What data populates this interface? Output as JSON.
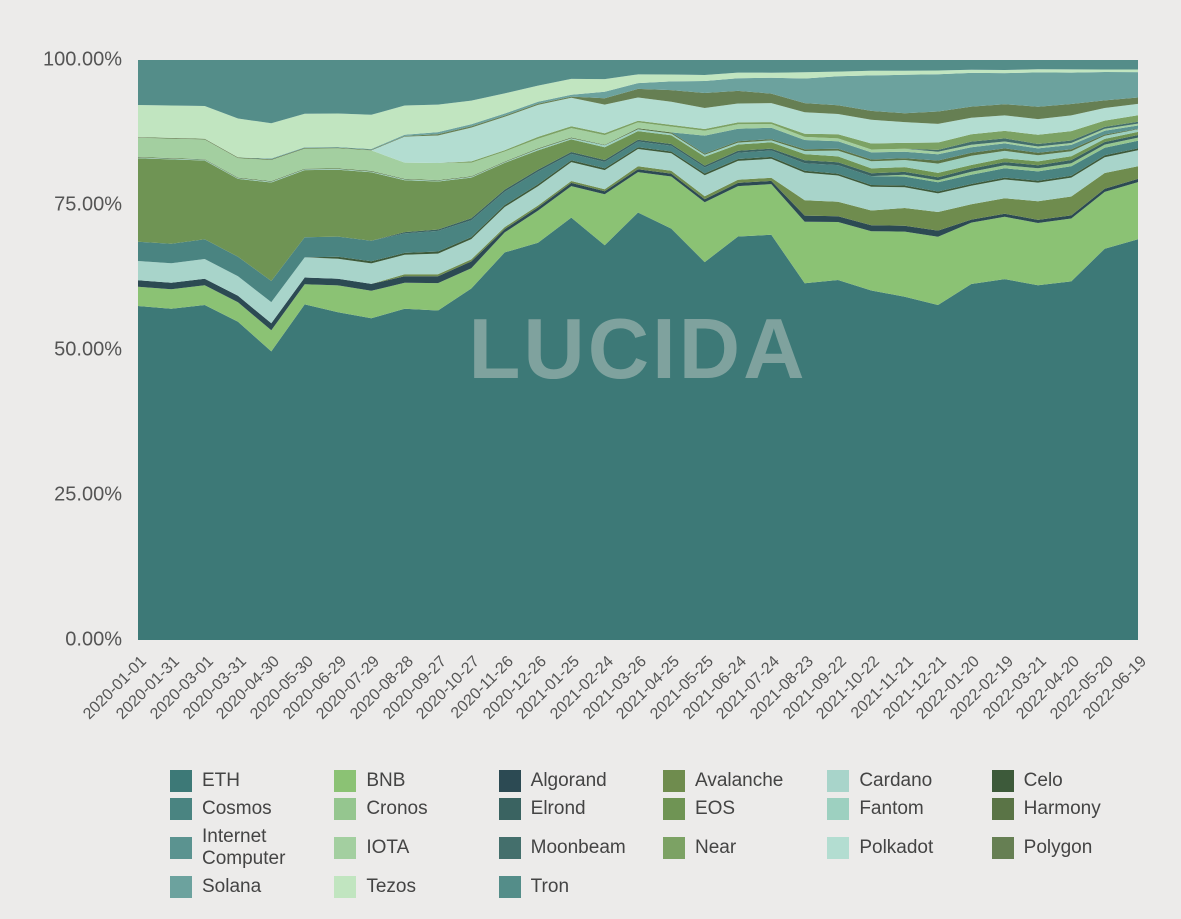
{
  "chart": {
    "type": "stacked-area-100",
    "watermark": "LUCIDA",
    "background_color": "#ecebea",
    "plot_background": "#fcfcfc",
    "text_color": "#555555",
    "y_axis": {
      "min": 0,
      "max": 100,
      "tick_step": 25,
      "format": "percent-2dp",
      "ticks": [
        "0.00%",
        "25.00%",
        "50.00%",
        "75.00%",
        "100.00%"
      ],
      "label_fontsize": 20
    },
    "x_axis": {
      "labels": [
        "2020-01-01",
        "2020-01-31",
        "2020-03-01",
        "2020-03-31",
        "2020-04-30",
        "2020-05-30",
        "2020-06-29",
        "2020-07-29",
        "2020-08-28",
        "2020-09-27",
        "2020-10-27",
        "2020-11-26",
        "2020-12-26",
        "2021-01-25",
        "2021-02-24",
        "2021-03-26",
        "2021-04-25",
        "2021-05-25",
        "2021-06-24",
        "2021-07-24",
        "2021-08-23",
        "2021-09-22",
        "2021-10-22",
        "2021-11-21",
        "2021-12-21",
        "2022-01-20",
        "2022-02-19",
        "2022-03-21",
        "2022-04-20",
        "2022-05-20",
        "2022-06-19"
      ],
      "rotation_deg": -45,
      "label_fontsize": 16
    },
    "series_order": [
      "ETH",
      "BNB",
      "Algorand",
      "Avalanche",
      "Cardano",
      "Celo",
      "Cosmos",
      "Cronos",
      "Elrond",
      "EOS",
      "Fantom",
      "Harmony",
      "Internet Computer",
      "IOTA",
      "Moonbeam",
      "Near",
      "Polkadot",
      "Polygon",
      "Solana",
      "Tezos",
      "Tron"
    ],
    "series_colors": {
      "ETH": "#3d7977",
      "BNB": "#8bc274",
      "Algorand": "#2c4a53",
      "Avalanche": "#6f8c4e",
      "Cardano": "#a8d4ca",
      "Celo": "#3d5a3a",
      "Cosmos": "#4a8481",
      "Cronos": "#95c68f",
      "Elrond": "#3a6361",
      "EOS": "#6f9454",
      "Fantom": "#9dd0c0",
      "Harmony": "#5a7446",
      "Internet Computer": "#5b9390",
      "IOTA": "#a3cfa0",
      "Moonbeam": "#446f6c",
      "Near": "#7ca264",
      "Polkadot": "#b3ddd1",
      "Polygon": "#667f53",
      "Solana": "#6ca29e",
      "Tezos": "#c1e5c0",
      "Tron": "#548d89"
    },
    "legend": {
      "columns": 6,
      "fontsize": 19,
      "swatch_size": 22
    },
    "data": {
      "x_count": 31,
      "series": {
        "ETH": [
          52,
          51,
          51,
          49,
          41,
          50,
          49,
          47,
          51,
          48,
          52,
          58,
          62,
          67,
          62,
          74,
          71,
          63,
          64,
          64,
          58,
          62,
          59,
          58,
          54,
          58,
          58,
          57,
          57,
          62,
          63
        ],
        "BNB": [
          3,
          3,
          3,
          3,
          3,
          3,
          4,
          4,
          4,
          4,
          3,
          3,
          5,
          5,
          8,
          7,
          9,
          10,
          8,
          8,
          10,
          10,
          10,
          11,
          11,
          10,
          10,
          10,
          10,
          9,
          9
        ],
        "Algorand": [
          1,
          1,
          1,
          1,
          1,
          1,
          1,
          1,
          1,
          1,
          1,
          0.5,
          0.5,
          0.5,
          0.5,
          0.5,
          0.5,
          0.5,
          0.5,
          0.5,
          1,
          1,
          1,
          1,
          1,
          0.5,
          0.5,
          0.5,
          0.5,
          0.5,
          0.5
        ],
        "Avalanche": [
          0,
          0,
          0,
          0,
          0,
          0,
          0,
          0,
          0.3,
          0.3,
          0.3,
          0.3,
          0.3,
          0.3,
          0.3,
          0.5,
          0.5,
          0.5,
          0.5,
          0.5,
          2.5,
          2.5,
          2.5,
          3,
          3,
          2.5,
          2.5,
          3,
          3,
          2.5,
          2
        ],
        "Cardano": [
          3,
          3,
          3,
          3,
          3,
          3,
          3,
          3,
          3,
          3,
          3,
          3,
          3,
          3,
          3,
          3,
          3,
          3.5,
          3,
          3,
          4.5,
          4.5,
          4,
          3.5,
          3,
          3,
          3,
          3,
          3,
          2.5,
          2.5
        ],
        "Celo": [
          0,
          0,
          0,
          0,
          0,
          0,
          0.3,
          0.3,
          0.3,
          0.3,
          0.3,
          0.3,
          0.3,
          0.3,
          0.3,
          0.3,
          0.3,
          0.3,
          0.3,
          0.3,
          0.3,
          0.3,
          0.3,
          0.3,
          0.3,
          0.3,
          0.3,
          0.3,
          0.3,
          0.3,
          0.3
        ],
        "Cosmos": [
          3,
          3,
          3,
          3,
          3,
          3,
          3,
          3,
          3,
          3,
          2.5,
          2,
          2,
          1,
          1,
          1,
          1,
          1,
          1,
          1,
          1.2,
          1.5,
          1.5,
          1.5,
          1.5,
          1.5,
          1.5,
          1.5,
          1.5,
          1.2,
          1.2
        ],
        "Cronos": [
          0,
          0,
          0,
          0,
          0,
          0,
          0,
          0,
          0,
          0,
          0,
          0,
          0,
          0,
          0,
          0,
          0,
          0,
          0,
          0,
          0,
          0,
          0,
          0.3,
          0.3,
          0.5,
          0.5,
          0.5,
          0.5,
          0.5,
          0.5
        ],
        "Elrond": [
          0,
          0,
          0,
          0,
          0,
          0,
          0,
          0,
          0.2,
          0.2,
          0.3,
          0.3,
          0.3,
          0.3,
          0.3,
          0.3,
          0.3,
          0.3,
          0.3,
          0.3,
          0.5,
          0.5,
          0.5,
          0.5,
          0.5,
          0.5,
          0.5,
          0.5,
          0.5,
          0.4,
          0.4
        ],
        "EOS": [
          13,
          13,
          12,
          12,
          14,
          10,
          10,
          10,
          8,
          7,
          6,
          4,
          3,
          2,
          2,
          1.5,
          1.5,
          1.5,
          1,
          1,
          1,
          1,
          0.8,
          0.8,
          0.7,
          0.6,
          0.6,
          0.6,
          0.6,
          0.5,
          0.5
        ],
        "Fantom": [
          0.1,
          0.1,
          0.1,
          0.1,
          0.1,
          0.1,
          0.1,
          0.1,
          0.1,
          0.1,
          0.1,
          0.1,
          0.2,
          0.2,
          0.3,
          0.3,
          0.3,
          0.3,
          0.3,
          0.3,
          0.5,
          1,
          1.2,
          1.2,
          1.5,
          1.5,
          1.2,
          1,
          0.8,
          0.5,
          0.4
        ],
        "Harmony": [
          0.1,
          0.1,
          0.1,
          0.1,
          0.1,
          0.1,
          0.1,
          0.1,
          0.1,
          0.1,
          0.1,
          0.1,
          0.1,
          0.1,
          0.1,
          0.2,
          0.2,
          0.2,
          0.2,
          0.2,
          0.3,
          0.3,
          0.3,
          0.3,
          0.5,
          0.5,
          0.4,
          0.4,
          0.3,
          0.2,
          0.1
        ],
        "Internet Computer": [
          0,
          0,
          0,
          0,
          0,
          0,
          0,
          0,
          0,
          0,
          0,
          0,
          0,
          0,
          0,
          0,
          0,
          3,
          2,
          1.8,
          1.5,
          1.3,
          1.2,
          1.1,
          1,
          0.9,
          0.8,
          0.7,
          0.7,
          0.6,
          0.5
        ],
        "IOTA": [
          3,
          3,
          3,
          3,
          3,
          3,
          3,
          3,
          2.5,
          2.5,
          2,
          1.5,
          1.5,
          1.5,
          1.5,
          1,
          1,
          0.8,
          0.7,
          0.6,
          0.5,
          0.5,
          0.5,
          0.5,
          0.4,
          0.4,
          0.3,
          0.3,
          0.3,
          0.3,
          0.3
        ],
        "Moonbeam": [
          0,
          0,
          0,
          0,
          0,
          0,
          0,
          0,
          0,
          0,
          0,
          0,
          0,
          0,
          0,
          0,
          0,
          0,
          0,
          0,
          0,
          0,
          0,
          0,
          0.3,
          0.5,
          0.5,
          0.4,
          0.4,
          0.3,
          0.3
        ],
        "Near": [
          0,
          0,
          0,
          0,
          0,
          0,
          0,
          0,
          0,
          0,
          0.2,
          0.2,
          0.3,
          0.3,
          0.3,
          0.3,
          0.3,
          0.3,
          0.3,
          0.3,
          0.5,
          0.7,
          1,
          1,
          1.2,
          1.2,
          1.2,
          1.5,
          1.5,
          1,
          1
        ],
        "Polkadot": [
          0,
          0,
          0,
          0,
          0,
          0,
          0,
          0,
          4,
          4,
          5,
          5,
          5,
          4.5,
          4.5,
          4,
          4,
          3.5,
          3,
          3,
          3.5,
          3.5,
          4,
          3.5,
          3,
          2.7,
          2.5,
          2.5,
          2.5,
          2,
          1.8
        ],
        "Polygon": [
          0.1,
          0.1,
          0.1,
          0.1,
          0.1,
          0.1,
          0.1,
          0.1,
          0.1,
          0.2,
          0.2,
          0.2,
          0.2,
          0.2,
          1,
          1.5,
          2,
          2.5,
          2,
          1.5,
          1.5,
          1.5,
          1.5,
          1.5,
          2,
          1.8,
          1.8,
          2,
          1.8,
          1.2,
          1
        ],
        "Solana": [
          0,
          0,
          0,
          0,
          0.1,
          0.1,
          0.1,
          0.1,
          0.2,
          0.3,
          0.3,
          0.3,
          0.3,
          0.3,
          1,
          1,
          1.5,
          2,
          2,
          2.5,
          4,
          5,
          6,
          6.5,
          6,
          5.5,
          5,
          5.5,
          5,
          4.5,
          4
        ],
        "Tezos": [
          5,
          5,
          5,
          6,
          5,
          5,
          5,
          5,
          4.5,
          4,
          3.5,
          3,
          2.5,
          2.5,
          2,
          1.5,
          1.2,
          1,
          0.9,
          0.8,
          1,
          0.8,
          0.8,
          0.7,
          0.6,
          0.5,
          0.5,
          0.5,
          0.5,
          0.4,
          0.4
        ],
        "Tron": [
          7,
          7,
          7,
          9,
          9,
          8,
          8,
          8,
          7,
          6.5,
          6,
          5,
          4,
          3,
          3,
          2.5,
          2.5,
          2.5,
          2,
          2,
          2,
          2,
          1.8,
          1.8,
          1.7,
          1.6,
          1.6,
          1.5,
          1.5,
          1.5,
          1.5
        ]
      }
    }
  }
}
